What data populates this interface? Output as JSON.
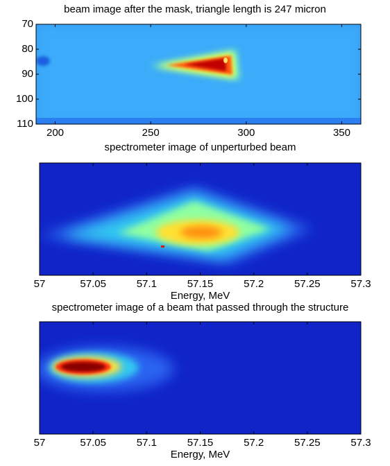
{
  "chart_data": [
    {
      "type": "image",
      "title": "beam image after the mask, triangle length is 247 micron",
      "xlim": [
        190,
        360
      ],
      "xticks": [
        200,
        250,
        300,
        350
      ],
      "ylim": [
        70,
        110
      ],
      "yticks": [
        70,
        80,
        90,
        100,
        110
      ],
      "yreverse": true
    },
    {
      "type": "image",
      "title": "spectrometer image of unperturbed beam",
      "xlim": [
        57,
        57.3
      ],
      "xticks": [
        57,
        57.05,
        57.1,
        57.15,
        57.2,
        57.25,
        57.3
      ],
      "xlabel": "Energy, MeV"
    },
    {
      "type": "image",
      "title": "spectrometer image of a beam that passed through the structure",
      "xlim": [
        57,
        57.3
      ],
      "xticks": [
        57,
        57.05,
        57.1,
        57.15,
        57.2,
        57.25,
        57.3
      ],
      "xlabel": "Energy, MeV"
    }
  ]
}
